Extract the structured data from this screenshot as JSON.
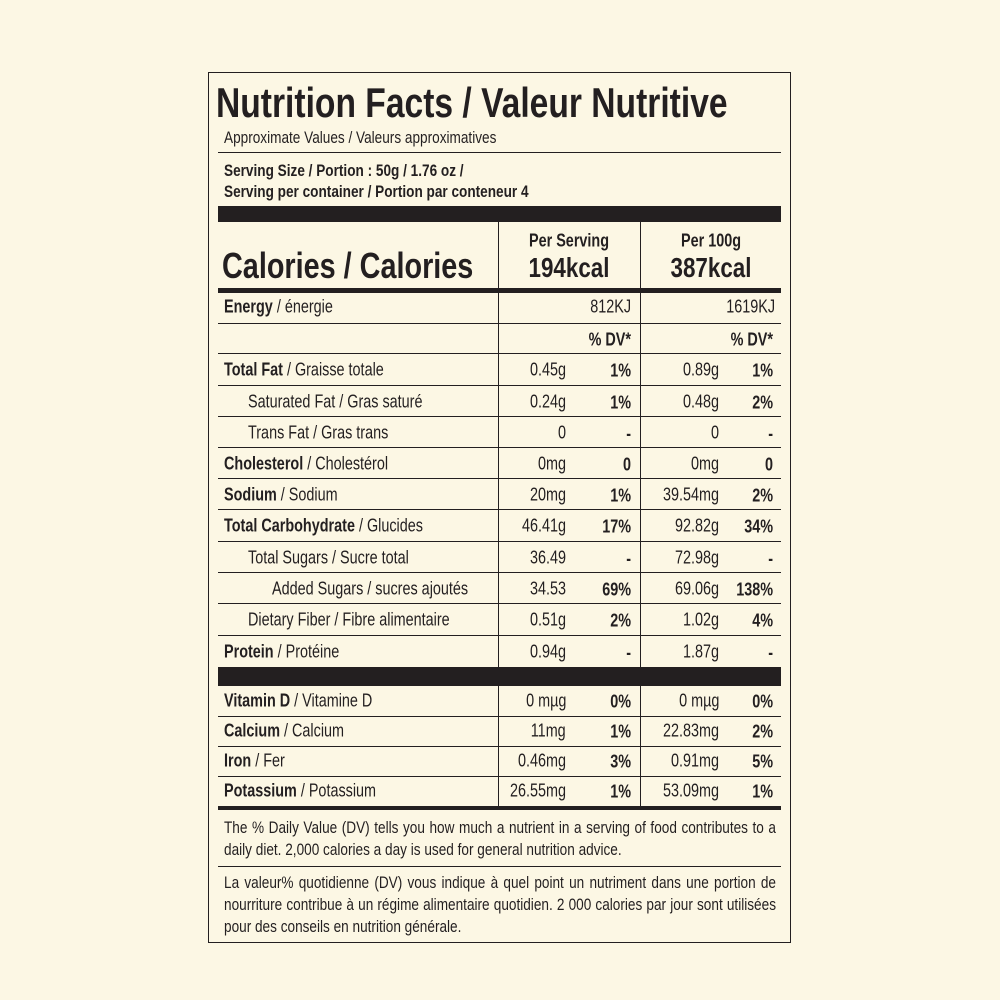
{
  "title": "Nutrition Facts / Valeur Nutritive",
  "subtitle": "Approximate Values / Valeurs approximatives",
  "serving_size": "Serving Size / Portion : 50g / 1.76 oz /",
  "servings": "Serving per container / Portion par conteneur  4",
  "calories_label": "Calories / Calories",
  "columns": [
    {
      "header": "Per Serving",
      "calories": "194kcal",
      "energy": "812KJ",
      "dv": "% DV*"
    },
    {
      "header": "Per 100g",
      "calories": "387kcal",
      "energy": "1619KJ",
      "dv": "% DV*"
    }
  ],
  "energy": {
    "name": "Energy",
    "label": "/ énergie"
  },
  "rows": [
    {
      "name": "Total Fat",
      "label": "/ Graisse totale",
      "cells": [
        "0.45g",
        "1%",
        "0.89g",
        "1%"
      ]
    },
    {
      "label": "Saturated Fat / Gras saturé",
      "cells": [
        "0.24g",
        "1%",
        "0.48g",
        "2%"
      ]
    },
    {
      "label": "Trans Fat / Gras trans",
      "cells": [
        "0",
        "-",
        "0",
        "-"
      ]
    },
    {
      "name": "Cholesterol",
      "label": "/ Cholestérol",
      "cells": [
        "0mg",
        "0",
        "0mg",
        "0"
      ]
    },
    {
      "name": "Sodium",
      "label": "/ Sodium",
      "cells": [
        "20mg",
        "1%",
        "39.54mg",
        "2%"
      ]
    },
    {
      "name": "Total Carbohydrate",
      "label": "/ Glucides",
      "cells": [
        "46.41g",
        "17%",
        "92.82g",
        "34%"
      ]
    },
    {
      "label": "Total Sugars / Sucre total",
      "cells": [
        "36.49",
        "-",
        "72.98g",
        "-"
      ]
    },
    {
      "label": "Added Sugars / sucres ajoutés",
      "cells": [
        "34.53",
        "69%",
        "69.06g",
        "138%"
      ]
    },
    {
      "label": "Dietary Fiber / Fibre alimentaire",
      "cells": [
        "0.51g",
        "2%",
        "1.02g",
        "4%"
      ]
    },
    {
      "name": "Protein",
      "label": "/ Protéine",
      "cells": [
        "0.94g",
        "-",
        "1.87g",
        "-"
      ]
    }
  ],
  "vitamins": [
    {
      "name": "Vitamin D",
      "label": "/ Vitamine D",
      "cells": [
        "0 mµg",
        "0%",
        "0 mµg",
        "0%"
      ]
    },
    {
      "name": "Calcium",
      "label": "/ Calcium",
      "cells": [
        "11mg",
        "1%",
        "22.83mg",
        "2%"
      ]
    },
    {
      "name": "Iron",
      "label": "/ Fer",
      "cells": [
        "0.46mg",
        "3%",
        "0.91mg",
        "5%"
      ]
    },
    {
      "name": "Potassium",
      "label": "/ Potassium",
      "cells": [
        "26.55mg",
        "1%",
        "53.09mg",
        "1%"
      ]
    }
  ],
  "footnotes": [
    "The % Daily Value (DV) tells you how much a nutrient in a serving of food contributes to a daily diet. 2,000 calories a day is used for general nutrition advice.",
    "La valeur% quotidienne (DV) vous indique à quel point un nutriment dans une portion de nourriture contribue à un régime alimentaire quotidien. 2 000 calories par jour sont utilisées pour des conseils en nutrition générale."
  ]
}
